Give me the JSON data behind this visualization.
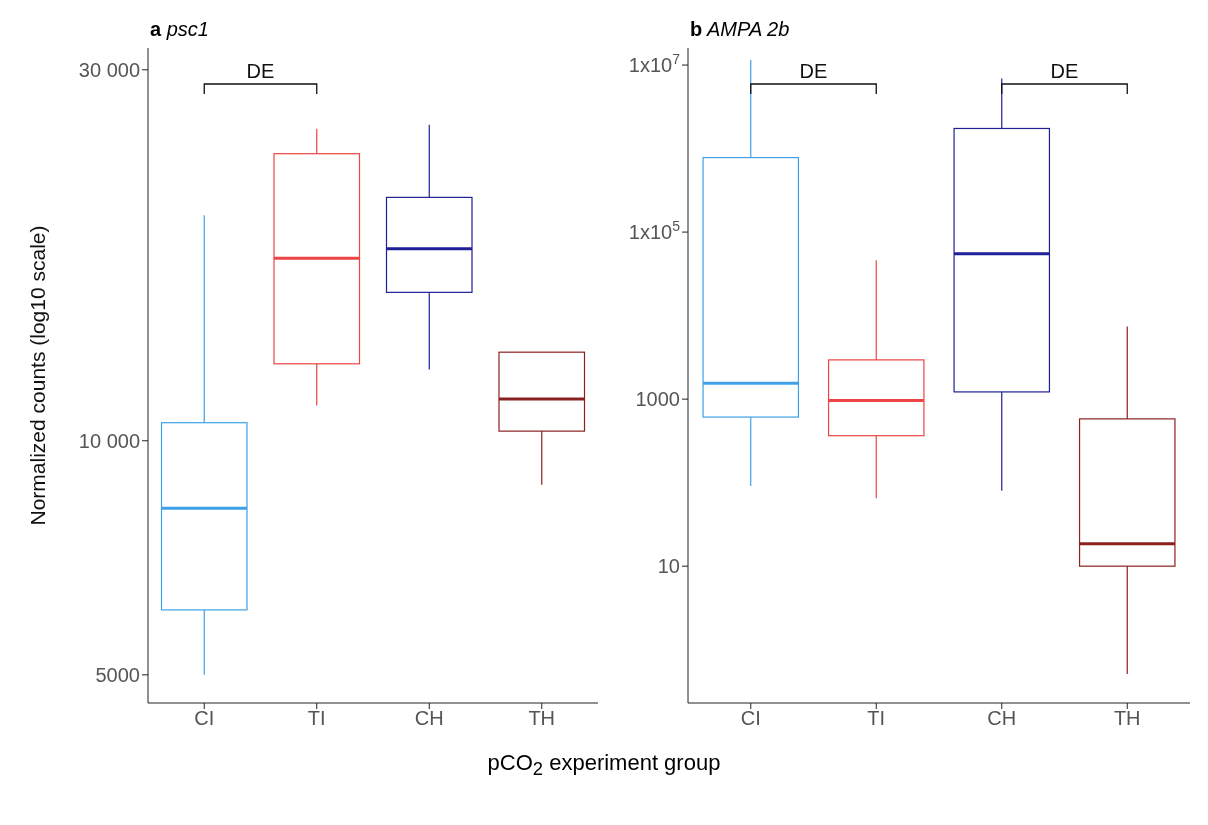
{
  "chart_data": [
    {
      "type": "box",
      "title": "a psc1",
      "ylabel": "Normalized counts (log10 scale)",
      "xlabel": "pCO$_{2}$ experiment group",
      "categories": [
        "CI",
        "TI",
        "CH",
        "TH"
      ],
      "log": true,
      "ylim": [
        4600,
        32000
      ],
      "yticks": [
        {
          "value": 5000,
          "label": "5000"
        },
        {
          "value": 10000,
          "label": "10 000"
        },
        {
          "value": 30000,
          "label": "30 000"
        }
      ],
      "colors": [
        "#3fa0e8",
        "#ee4444",
        "#1f1f99",
        "#8b2020"
      ],
      "annotations": [
        "DE"
      ],
      "boxes": [
        {
          "low": 5000,
          "q1": 6060,
          "median": 8190,
          "q3": 10550,
          "high": 19500
        },
        {
          "low": 11100,
          "q1": 12560,
          "median": 17170,
          "q3": 23400,
          "high": 25200
        },
        {
          "low": 12350,
          "q1": 15520,
          "median": 17660,
          "q3": 20560,
          "high": 25500
        },
        {
          "low": 8780,
          "q1": 10290,
          "median": 11320,
          "q3": 13000,
          "high": 13000
        }
      ]
    },
    {
      "type": "box",
      "title": "b AMPA 2b",
      "categories": [
        "CI",
        "TI",
        "CH",
        "TH"
      ],
      "log": true,
      "ylim": [
        0.23,
        16000000
      ],
      "yticks": [
        {
          "value": 10,
          "label": "10"
        },
        {
          "value": 1000,
          "label": "1000"
        },
        {
          "value": 100000,
          "label": "1x10$^{5}$"
        },
        {
          "value": 10000000,
          "label": "1x10$^{7}$"
        }
      ],
      "colors": [
        "#3fa0e8",
        "#ee4444",
        "#1f1f99",
        "#8b2020"
      ],
      "annotations": [
        "DE",
        "DE"
      ],
      "boxes": [
        {
          "low": 91,
          "q1": 610,
          "median": 1550,
          "q3": 780000,
          "high": 11500000
        },
        {
          "low": 65,
          "q1": 365,
          "median": 960,
          "q3": 2950,
          "high": 46000
        },
        {
          "low": 80,
          "q1": 1220,
          "median": 55000,
          "q3": 1740000,
          "high": 6900000
        },
        {
          "low": 0.51,
          "q1": 10,
          "median": 18.5,
          "q3": 580,
          "high": 7400
        }
      ]
    }
  ]
}
